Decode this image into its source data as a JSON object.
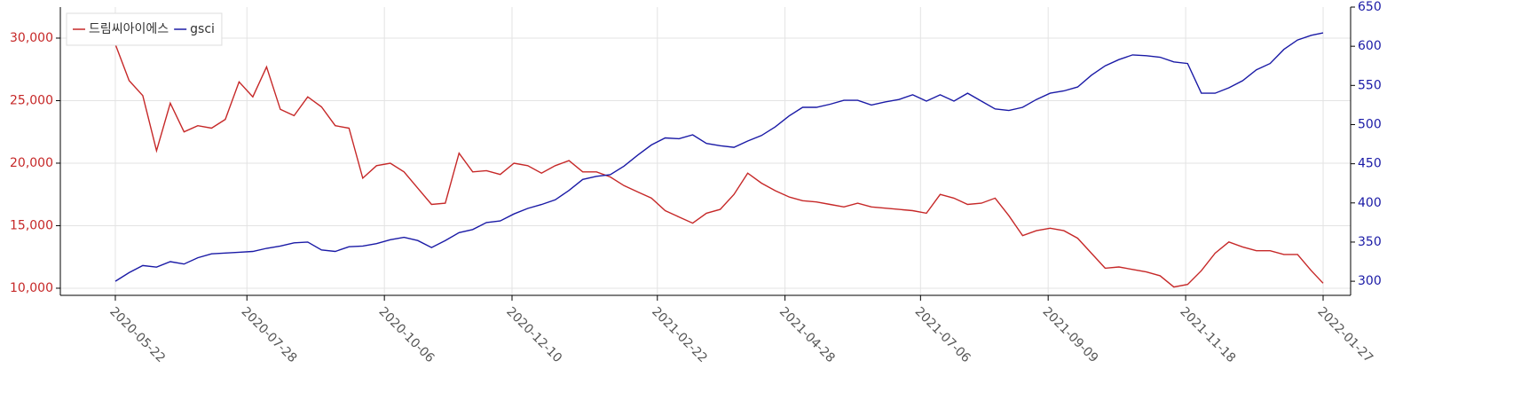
{
  "chart_data": {
    "type": "line",
    "x": [
      "2020-05-22",
      "2020-05-29",
      "2020-06-05",
      "2020-06-12",
      "2020-06-19",
      "2020-06-26",
      "2020-07-03",
      "2020-07-10",
      "2020-07-17",
      "2020-07-24",
      "2020-07-31",
      "2020-08-07",
      "2020-08-14",
      "2020-08-21",
      "2020-08-28",
      "2020-09-04",
      "2020-09-11",
      "2020-09-18",
      "2020-09-25",
      "2020-10-02",
      "2020-10-09",
      "2020-10-16",
      "2020-10-23",
      "2020-10-30",
      "2020-11-06",
      "2020-11-13",
      "2020-11-20",
      "2020-11-27",
      "2020-12-04",
      "2020-12-11",
      "2020-12-18",
      "2020-12-25",
      "2021-01-01",
      "2021-01-08",
      "2021-01-15",
      "2021-01-22",
      "2021-01-29",
      "2021-02-05",
      "2021-02-12",
      "2021-02-19",
      "2021-02-26",
      "2021-03-05",
      "2021-03-12",
      "2021-03-19",
      "2021-03-26",
      "2021-04-02",
      "2021-04-09",
      "2021-04-16",
      "2021-04-23",
      "2021-04-30",
      "2021-05-07",
      "2021-05-14",
      "2021-05-21",
      "2021-05-28",
      "2021-06-04",
      "2021-06-11",
      "2021-06-18",
      "2021-06-25",
      "2021-07-02",
      "2021-07-09",
      "2021-07-16",
      "2021-07-23",
      "2021-07-30",
      "2021-08-06",
      "2021-08-13",
      "2021-08-20",
      "2021-08-27",
      "2021-09-03",
      "2021-09-10",
      "2021-09-17",
      "2021-09-24",
      "2021-10-01",
      "2021-10-08",
      "2021-10-15",
      "2021-10-22",
      "2021-10-29",
      "2021-11-05",
      "2021-11-12",
      "2021-11-19",
      "2021-11-26",
      "2021-12-03",
      "2021-12-10",
      "2021-12-17",
      "2021-12-24",
      "2021-12-31",
      "2022-01-07",
      "2022-01-14",
      "2022-01-21",
      "2022-01-27"
    ],
    "series": [
      {
        "name": "드림씨아이에스",
        "color": "#c62828",
        "axis": "y",
        "values": [
          29500,
          26600,
          25400,
          21000,
          24800,
          22500,
          23000,
          22800,
          23500,
          26500,
          25300,
          27700,
          24300,
          23800,
          25300,
          24500,
          23000,
          22800,
          18800,
          19800,
          20000,
          19300,
          18000,
          16700,
          16800,
          20800,
          19300,
          19400,
          19100,
          20000,
          19800,
          19200,
          19800,
          20200,
          19300,
          19300,
          18900,
          18200,
          17700,
          17200,
          16200,
          15700,
          15200,
          16000,
          16300,
          17500,
          19200,
          18400,
          17800,
          17300,
          17000,
          16900,
          16700,
          16500,
          16800,
          16500,
          16400,
          16300,
          16200,
          16000,
          17500,
          17200,
          16700,
          16800,
          17200,
          15800,
          14200,
          14600,
          14800,
          14600,
          14000,
          12800,
          11600,
          11700,
          11500,
          11300,
          11000,
          10100,
          10300,
          11400,
          12800,
          13700,
          13300,
          13000,
          13000,
          12700,
          12700,
          11400,
          10400
        ]
      },
      {
        "name": "gsci",
        "color": "#1a1aa6",
        "axis": "y2",
        "values": [
          300,
          311,
          320,
          318,
          325,
          322,
          330,
          335,
          336,
          337,
          338,
          342,
          345,
          349,
          350,
          340,
          338,
          344,
          345,
          348,
          353,
          356,
          352,
          343,
          352,
          362,
          366,
          375,
          377,
          386,
          393,
          398,
          404,
          416,
          430,
          434,
          436,
          447,
          461,
          474,
          483,
          482,
          487,
          476,
          473,
          471,
          479,
          486,
          497,
          511,
          522,
          522,
          526,
          531,
          531,
          525,
          529,
          532,
          538,
          530,
          538,
          530,
          540,
          530,
          520,
          518,
          522,
          532,
          540,
          543,
          548,
          563,
          575,
          583,
          589,
          588,
          586,
          580,
          578,
          540,
          540,
          547,
          556,
          570,
          578,
          596,
          608,
          614,
          617
        ]
      }
    ],
    "xlim": [
      "2020-04-24",
      "2022-02-10"
    ],
    "xticks": [
      "2020-05-22",
      "2020-07-28",
      "2020-10-06",
      "2020-12-10",
      "2021-02-22",
      "2021-04-28",
      "2021-07-06",
      "2021-09-09",
      "2021-11-18",
      "2022-01-27"
    ],
    "ylim": [
      9430,
      32480
    ],
    "yticks": [
      {
        "value": 10000,
        "label": "10,000"
      },
      {
        "value": 15000,
        "label": "15,000"
      },
      {
        "value": 20000,
        "label": "20,000"
      },
      {
        "value": 25000,
        "label": "25,000"
      },
      {
        "value": 30000,
        "label": "30,000"
      }
    ],
    "y2lim": [
      282,
      650
    ],
    "y2ticks": [
      300,
      350,
      400,
      450,
      500,
      550,
      600,
      650
    ],
    "grid": true,
    "legend": "upper left"
  }
}
